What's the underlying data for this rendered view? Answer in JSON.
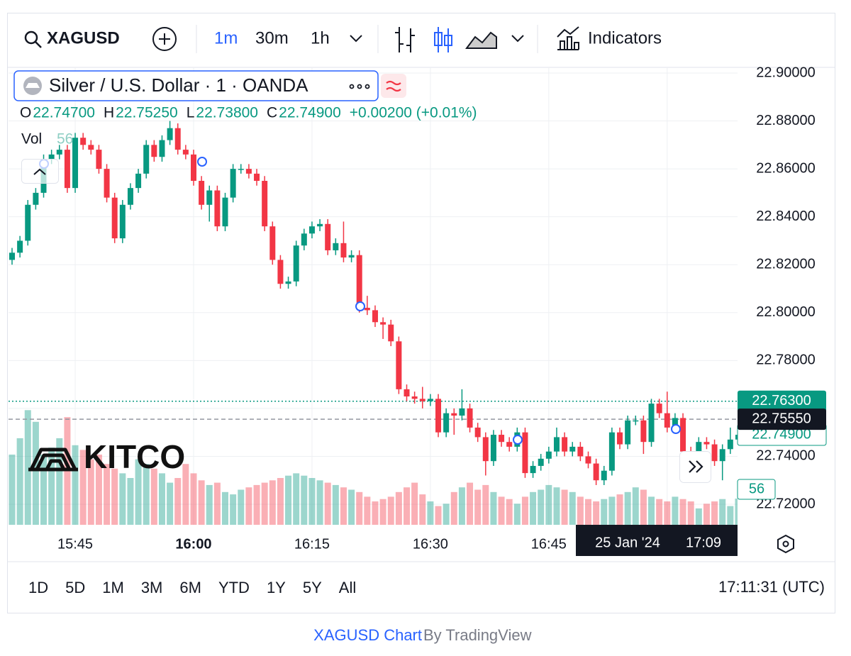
{
  "toolbar": {
    "symbol": "XAGUSD",
    "intervals": [
      "1m",
      "30m",
      "1h"
    ],
    "indicators": "Indicators"
  },
  "legend": {
    "title": "Silver / U.S. Dollar · 1 · OANDA",
    "ohlc": [
      {
        "key": "O",
        "value": 22.747,
        "label": "22.74700"
      },
      {
        "key": "H",
        "value": 22.7525,
        "label": "22.75250"
      },
      {
        "key": "L",
        "value": 22.738,
        "label": "22.73800"
      },
      {
        "key": "C",
        "value": 22.749,
        "label": "22.74900"
      }
    ],
    "change": "+0.00200 (+0.01%)",
    "volume_label": "Vol"
  },
  "logo": "KITCO",
  "chart_data": {
    "type": "candlestick",
    "categories": [
      null,
      null,
      null,
      null,
      null,
      null,
      null,
      null,
      "15:45",
      null,
      null,
      null,
      null,
      null,
      null,
      null,
      null,
      null,
      null,
      null,
      null,
      null,
      null,
      "16:00",
      null,
      null,
      null,
      null,
      null,
      null,
      null,
      null,
      null,
      null,
      null,
      null,
      null,
      null,
      "16:15",
      null,
      null,
      null,
      null,
      null,
      null,
      null,
      null,
      null,
      null,
      null,
      null,
      null,
      null,
      "16:30",
      null,
      null,
      null,
      null,
      null,
      null,
      null,
      null,
      null,
      null,
      null,
      null,
      null,
      null,
      "16:45",
      null,
      null,
      null,
      null,
      null,
      null,
      null,
      null,
      null,
      null,
      null,
      null,
      null,
      null,
      null,
      null,
      null,
      null,
      null,
      null,
      null,
      null,
      null,
      null
    ],
    "open": [
      22.822,
      22.825,
      22.83,
      22.845,
      22.85,
      22.864,
      22.866,
      22.868,
      22.852,
      22.873,
      22.87,
      22.868,
      22.86,
      22.848,
      22.831,
      22.845,
      22.852,
      22.858,
      22.87,
      22.865,
      22.872,
      22.877,
      22.868,
      22.866,
      22.855,
      22.845,
      22.851,
      22.836,
      22.848,
      22.86,
      22.86,
      22.858,
      22.855,
      22.836,
      22.822,
      22.812,
      22.813,
      22.828,
      22.833,
      22.836,
      22.837,
      22.826,
      22.829,
      22.823,
      22.824,
      22.802,
      22.801,
      22.796,
      22.795,
      22.788,
      22.768,
      22.765,
      22.764,
      22.763,
      22.764,
      22.75,
      22.758,
      22.757,
      22.76,
      22.752,
      22.748,
      22.738,
      22.749,
      22.746,
      22.744,
      22.75,
      22.733,
      22.736,
      22.739,
      22.742,
      22.748,
      22.742,
      22.744,
      22.74,
      22.737,
      22.73,
      22.734,
      22.75,
      22.745,
      22.755,
      22.755,
      22.746,
      22.762,
      22.758,
      22.752,
      22.756,
      22.742,
      22.735,
      22.746,
      22.745,
      22.738,
      22.743,
      22.747
    ],
    "high": [
      22.827,
      22.832,
      22.847,
      22.852,
      22.866,
      22.868,
      22.87,
      22.87,
      22.875,
      22.875,
      22.872,
      22.87,
      22.862,
      22.85,
      22.847,
      22.854,
      22.86,
      22.872,
      22.872,
      22.874,
      22.88,
      22.879,
      22.87,
      22.868,
      22.857,
      22.853,
      22.853,
      22.85,
      22.862,
      22.862,
      22.862,
      22.86,
      22.857,
      22.838,
      22.824,
      22.815,
      22.83,
      22.835,
      22.838,
      22.839,
      22.839,
      22.831,
      22.838,
      22.826,
      22.826,
      22.807,
      22.803,
      22.798,
      22.797,
      22.79,
      22.77,
      22.767,
      22.769,
      22.766,
      22.766,
      22.76,
      22.76,
      22.768,
      22.762,
      22.754,
      22.75,
      22.751,
      22.751,
      22.748,
      22.752,
      22.752,
      22.738,
      22.741,
      22.744,
      22.752,
      22.75,
      22.746,
      22.746,
      22.742,
      22.739,
      22.736,
      22.752,
      22.752,
      22.757,
      22.757,
      22.757,
      22.764,
      22.764,
      22.767,
      22.758,
      22.758,
      22.744,
      22.748,
      22.748,
      22.747,
      22.745,
      22.752,
      22.7525
    ],
    "low": [
      22.82,
      22.823,
      22.828,
      22.843,
      22.848,
      22.862,
      22.864,
      22.85,
      22.85,
      22.868,
      22.866,
      22.858,
      22.846,
      22.829,
      22.829,
      22.843,
      22.85,
      22.856,
      22.863,
      22.863,
      22.87,
      22.866,
      22.864,
      22.853,
      22.843,
      22.838,
      22.834,
      22.834,
      22.846,
      22.858,
      22.856,
      22.853,
      22.834,
      22.82,
      22.81,
      22.81,
      22.811,
      22.826,
      22.831,
      22.834,
      22.824,
      22.824,
      22.821,
      22.821,
      22.8,
      22.799,
      22.794,
      22.789,
      22.786,
      22.766,
      22.763,
      22.762,
      22.76,
      22.761,
      22.748,
      22.748,
      22.749,
      22.755,
      22.75,
      22.746,
      22.732,
      22.736,
      22.744,
      22.742,
      22.742,
      22.731,
      22.731,
      22.734,
      22.737,
      22.74,
      22.74,
      22.74,
      22.738,
      22.735,
      22.728,
      22.728,
      22.732,
      22.743,
      22.743,
      22.753,
      22.741,
      22.744,
      22.756,
      22.75,
      22.75,
      22.74,
      22.733,
      22.733,
      22.743,
      22.736,
      22.73,
      22.741,
      22.738
    ],
    "close": [
      22.825,
      22.83,
      22.845,
      22.85,
      22.864,
      22.866,
      22.868,
      22.852,
      22.873,
      22.87,
      22.868,
      22.86,
      22.848,
      22.831,
      22.845,
      22.852,
      22.858,
      22.87,
      22.865,
      22.872,
      22.877,
      22.868,
      22.866,
      22.855,
      22.845,
      22.851,
      22.836,
      22.848,
      22.86,
      22.86,
      22.858,
      22.855,
      22.836,
      22.822,
      22.812,
      22.813,
      22.828,
      22.833,
      22.836,
      22.837,
      22.826,
      22.829,
      22.823,
      22.824,
      22.802,
      22.801,
      22.796,
      22.795,
      22.788,
      22.768,
      22.765,
      22.764,
      22.763,
      22.764,
      22.75,
      22.758,
      22.757,
      22.76,
      22.752,
      22.748,
      22.738,
      22.749,
      22.746,
      22.744,
      22.75,
      22.733,
      22.736,
      22.739,
      22.742,
      22.748,
      22.742,
      22.744,
      22.74,
      22.737,
      22.73,
      22.734,
      22.75,
      22.745,
      22.755,
      22.755,
      22.746,
      22.762,
      22.758,
      22.752,
      22.756,
      22.742,
      22.735,
      22.746,
      22.745,
      22.738,
      22.743,
      22.747,
      22.749
    ],
    "volume": [
      150,
      185,
      245,
      220,
      150,
      165,
      185,
      230,
      170,
      160,
      140,
      150,
      130,
      120,
      110,
      100,
      140,
      130,
      120,
      110,
      90,
      100,
      130,
      110,
      95,
      85,
      90,
      70,
      65,
      75,
      80,
      85,
      90,
      95,
      100,
      105,
      110,
      105,
      100,
      95,
      90,
      85,
      80,
      75,
      70,
      60,
      50,
      55,
      60,
      70,
      80,
      90,
      65,
      50,
      40,
      45,
      70,
      80,
      90,
      75,
      85,
      70,
      60,
      55,
      45,
      60,
      70,
      75,
      85,
      80,
      75,
      70,
      60,
      55,
      50,
      55,
      60,
      65,
      70,
      80,
      75,
      60,
      55,
      50,
      60,
      55,
      50,
      35,
      45,
      50,
      55,
      40,
      56
    ],
    "up_color": "#089981",
    "down_color": "#f23645",
    "ylim": [
      22.71,
      22.9
    ],
    "yticks": [
      {
        "value": 22.72,
        "label": "22.72000"
      },
      {
        "value": 22.74,
        "label": "22.74000"
      },
      {
        "value": 22.76,
        "label": "22.76000"
      },
      {
        "value": 22.78,
        "label": "22.78000"
      },
      {
        "value": 22.8,
        "label": "22.80000"
      },
      {
        "value": 22.82,
        "label": "22.82000"
      },
      {
        "value": 22.84,
        "label": "22.84000"
      },
      {
        "value": 22.86,
        "label": "22.86000"
      },
      {
        "value": 22.88,
        "label": "22.88000"
      },
      {
        "value": 22.9,
        "label": "22.90000"
      }
    ],
    "high_line": {
      "value": 22.763,
      "label": "22.76300"
    },
    "crosshair": {
      "price": {
        "value": 22.7555,
        "label": "22.75550"
      },
      "date": "25 Jan '24",
      "time": "17:09"
    },
    "last_price": {
      "value": 22.749,
      "label": "22.74900"
    },
    "grid": true
  },
  "ranges": [
    "1D",
    "5D",
    "1M",
    "3M",
    "6M",
    "YTD",
    "1Y",
    "5Y",
    "All"
  ],
  "clock": "17:11:31 (UTC)",
  "footer": {
    "link": "XAGUSD Chart",
    "by": "By TradingView"
  }
}
